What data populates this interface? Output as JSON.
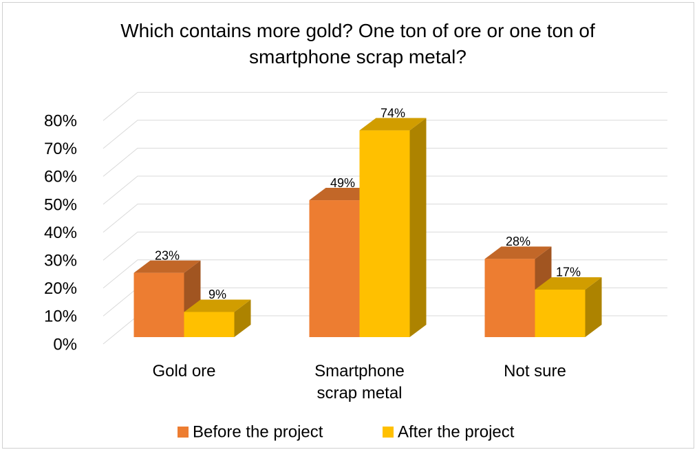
{
  "chart_data": {
    "type": "bar3d",
    "title": "Which contains more gold? One ton of ore or one ton of smartphone scrap metal?",
    "categories": [
      "Gold ore",
      "Smartphone scrap metal",
      "Not sure"
    ],
    "series": [
      {
        "name": "Before the project",
        "color": "#ed7d31",
        "values": [
          23,
          49,
          28
        ],
        "value_labels": [
          "23%",
          "49%",
          "28%"
        ]
      },
      {
        "name": "After the project",
        "color": "#ffc000",
        "values": [
          9,
          74,
          17
        ],
        "value_labels": [
          "9%",
          "74%",
          "17%"
        ]
      }
    ],
    "ylim": [
      0,
      80
    ],
    "yticks": [
      {
        "value": 0,
        "label": "0%"
      },
      {
        "value": 10,
        "label": "10%"
      },
      {
        "value": 20,
        "label": "20%"
      },
      {
        "value": 30,
        "label": "30%"
      },
      {
        "value": 40,
        "label": "40%"
      },
      {
        "value": 50,
        "label": "50%"
      },
      {
        "value": 60,
        "label": "60%"
      },
      {
        "value": 70,
        "label": "70%"
      },
      {
        "value": 80,
        "label": "80%"
      }
    ],
    "grid": true,
    "legend": "bottom"
  }
}
